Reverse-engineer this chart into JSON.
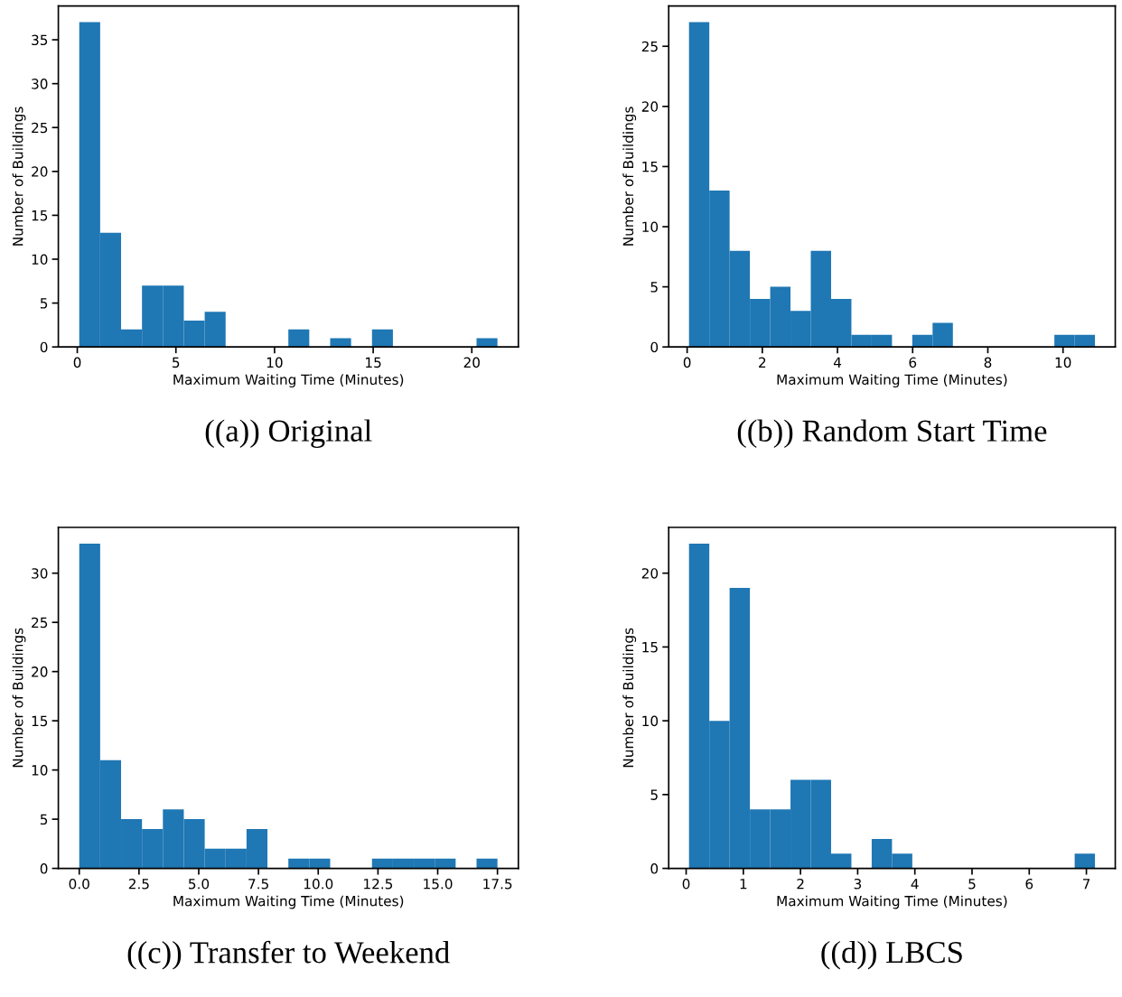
{
  "chart_data": [
    {
      "type": "histogram",
      "title": "((a)) Original",
      "xlabel": "Maximum Waiting Time (Minutes)",
      "ylabel": "Number of Buildings",
      "color": "#1f77b4",
      "bins": [
        0.1,
        1.16,
        2.22,
        3.28,
        4.34,
        5.4,
        6.46,
        7.52,
        8.58,
        9.64,
        10.7,
        11.76,
        12.82,
        13.88,
        14.94,
        16.0,
        17.06,
        18.12,
        19.18,
        20.24,
        21.3
      ],
      "values": [
        37,
        13,
        2,
        7,
        7,
        3,
        4,
        0,
        0,
        0,
        2,
        0,
        1,
        0,
        2,
        0,
        0,
        0,
        0,
        1
      ],
      "xlim": [
        -0.96,
        22.36
      ],
      "xticks": [
        0,
        5,
        10,
        15,
        20
      ],
      "ylim": [
        0,
        38.85
      ],
      "yticks": [
        0,
        5,
        10,
        15,
        20,
        25,
        30,
        35
      ]
    },
    {
      "type": "histogram",
      "title": "((b)) Random Start Time",
      "xlabel": "Maximum Waiting Time (Minutes)",
      "ylabel": "Number of Buildings",
      "color": "#1f77b4",
      "bins": [
        0.05,
        0.59,
        1.13,
        1.67,
        2.21,
        2.75,
        3.29,
        3.83,
        4.37,
        4.91,
        5.45,
        5.99,
        6.53,
        7.07,
        7.61,
        8.15,
        8.69,
        9.23,
        9.77,
        10.31,
        10.85
      ],
      "values": [
        27,
        13,
        8,
        4,
        5,
        3,
        8,
        4,
        1,
        1,
        0,
        1,
        2,
        0,
        0,
        0,
        0,
        0,
        1,
        1
      ],
      "xlim": [
        -0.49,
        11.39
      ],
      "xticks": [
        0,
        2,
        4,
        6,
        8,
        10
      ],
      "ylim": [
        0,
        28.35
      ],
      "yticks": [
        0,
        5,
        10,
        15,
        20,
        25
      ]
    },
    {
      "type": "histogram",
      "title": "((c)) Transfer to Weekend",
      "xlabel": "Maximum Waiting Time (Minutes)",
      "ylabel": "Number of Buildings",
      "color": "#1f77b4",
      "bins": [
        0.0,
        0.875,
        1.75,
        2.625,
        3.5,
        4.375,
        5.25,
        6.125,
        7.0,
        7.875,
        8.75,
        9.625,
        10.5,
        11.375,
        12.25,
        13.125,
        14.0,
        14.875,
        15.75,
        16.625,
        17.5
      ],
      "values": [
        33,
        11,
        5,
        4,
        6,
        5,
        2,
        2,
        4,
        0,
        1,
        1,
        0,
        0,
        1,
        1,
        1,
        1,
        0,
        1
      ],
      "xlim": [
        -0.875,
        18.375
      ],
      "xticks": [
        {
          "value": 0,
          "label": "0.0"
        },
        {
          "value": 2.5,
          "label": "2.5"
        },
        {
          "value": 5,
          "label": "5.0"
        },
        {
          "value": 7.5,
          "label": "7.5"
        },
        {
          "value": 10,
          "label": "10.0"
        },
        {
          "value": 12.5,
          "label": "12.5"
        },
        {
          "value": 15,
          "label": "15.0"
        },
        {
          "value": 17.5,
          "label": "17.5"
        }
      ],
      "ylim": [
        0,
        34.65
      ],
      "yticks": [
        0,
        5,
        10,
        15,
        20,
        25,
        30
      ]
    },
    {
      "type": "histogram",
      "title": "((d)) LBCS",
      "xlabel": "Maximum Waiting Time (Minutes)",
      "ylabel": "Number of Buildings",
      "color": "#1f77b4",
      "bins": [
        0.05,
        0.405,
        0.76,
        1.115,
        1.47,
        1.825,
        2.18,
        2.535,
        2.89,
        3.245,
        3.6,
        3.955,
        4.31,
        4.665,
        5.02,
        5.375,
        5.73,
        6.085,
        6.44,
        6.795,
        7.15
      ],
      "values": [
        22,
        10,
        19,
        4,
        4,
        6,
        6,
        1,
        0,
        2,
        1,
        0,
        0,
        0,
        0,
        0,
        0,
        0,
        0,
        1
      ],
      "xlim": [
        -0.305,
        7.505
      ],
      "xticks": [
        0,
        1,
        2,
        3,
        4,
        5,
        6,
        7
      ],
      "ylim": [
        0,
        23.1
      ],
      "yticks": [
        0,
        5,
        10,
        15,
        20
      ]
    }
  ]
}
